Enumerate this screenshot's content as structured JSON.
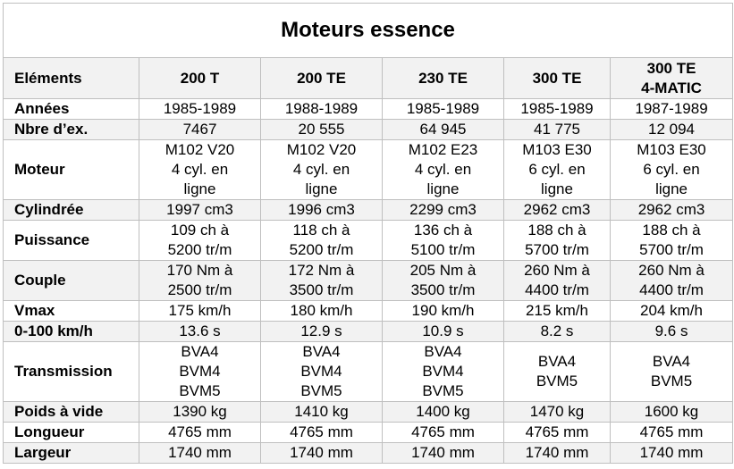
{
  "title": "Moteurs essence",
  "headers": [
    "Eléments",
    "200 T",
    "200 TE",
    "230 TE",
    "300 TE",
    "300 TE\n4-MATIC"
  ],
  "rows": [
    {
      "label": "Années",
      "values": [
        "1985-1989",
        "1988-1989",
        "1985-1989",
        "1985-1989",
        "1987-1989"
      ]
    },
    {
      "label": "Nbre d’ex.",
      "values": [
        "7467",
        "20 555",
        "64 945",
        "41 775",
        "12 094"
      ]
    },
    {
      "label": "Moteur",
      "values": [
        "M102 V20\n4 cyl. en\nligne",
        "M102 V20\n4 cyl. en\nligne",
        "M102 E23\n4 cyl. en\nligne",
        "M103 E30\n6 cyl. en\nligne",
        "M103 E30\n6 cyl. en\nligne"
      ]
    },
    {
      "label": "Cylindrée",
      "values": [
        "1997 cm3",
        "1996 cm3",
        "2299 cm3",
        "2962 cm3",
        "2962 cm3"
      ]
    },
    {
      "label": "Puissance",
      "values": [
        "109 ch à\n5200 tr/m",
        "118 ch à\n5200 tr/m",
        "136 ch à\n5100 tr/m",
        "188 ch à\n5700 tr/m",
        "188 ch à\n5700 tr/m"
      ]
    },
    {
      "label": "Couple",
      "values": [
        "170 Nm à\n2500 tr/m",
        "172 Nm à\n3500 tr/m",
        "205 Nm à\n3500 tr/m",
        "260 Nm à\n4400 tr/m",
        "260 Nm à\n4400 tr/m"
      ]
    },
    {
      "label": "Vmax",
      "values": [
        "175 km/h",
        "180 km/h",
        "190 km/h",
        "215 km/h",
        "204 km/h"
      ]
    },
    {
      "label": "0-100 km/h",
      "values": [
        "13.6 s",
        "12.9 s",
        "10.9 s",
        "8.2 s",
        "9.6 s"
      ]
    },
    {
      "label": "Transmission",
      "values": [
        "BVA4\nBVM4\nBVM5",
        "BVA4\nBVM4\nBVM5",
        "BVA4\nBVM4\nBVM5",
        "BVA4\nBVM5",
        "BVA4\nBVM5"
      ]
    },
    {
      "label": "Poids à vide",
      "values": [
        "1390 kg",
        "1410 kg",
        "1400 kg",
        "1470 kg",
        "1600 kg"
      ]
    },
    {
      "label": "Longueur",
      "values": [
        "4765 mm",
        "4765 mm",
        "4765 mm",
        "4765 mm",
        "4765 mm"
      ]
    },
    {
      "label": "Largeur",
      "values": [
        "1740 mm",
        "1740 mm",
        "1740 mm",
        "1740 mm",
        "1740 mm"
      ]
    }
  ]
}
